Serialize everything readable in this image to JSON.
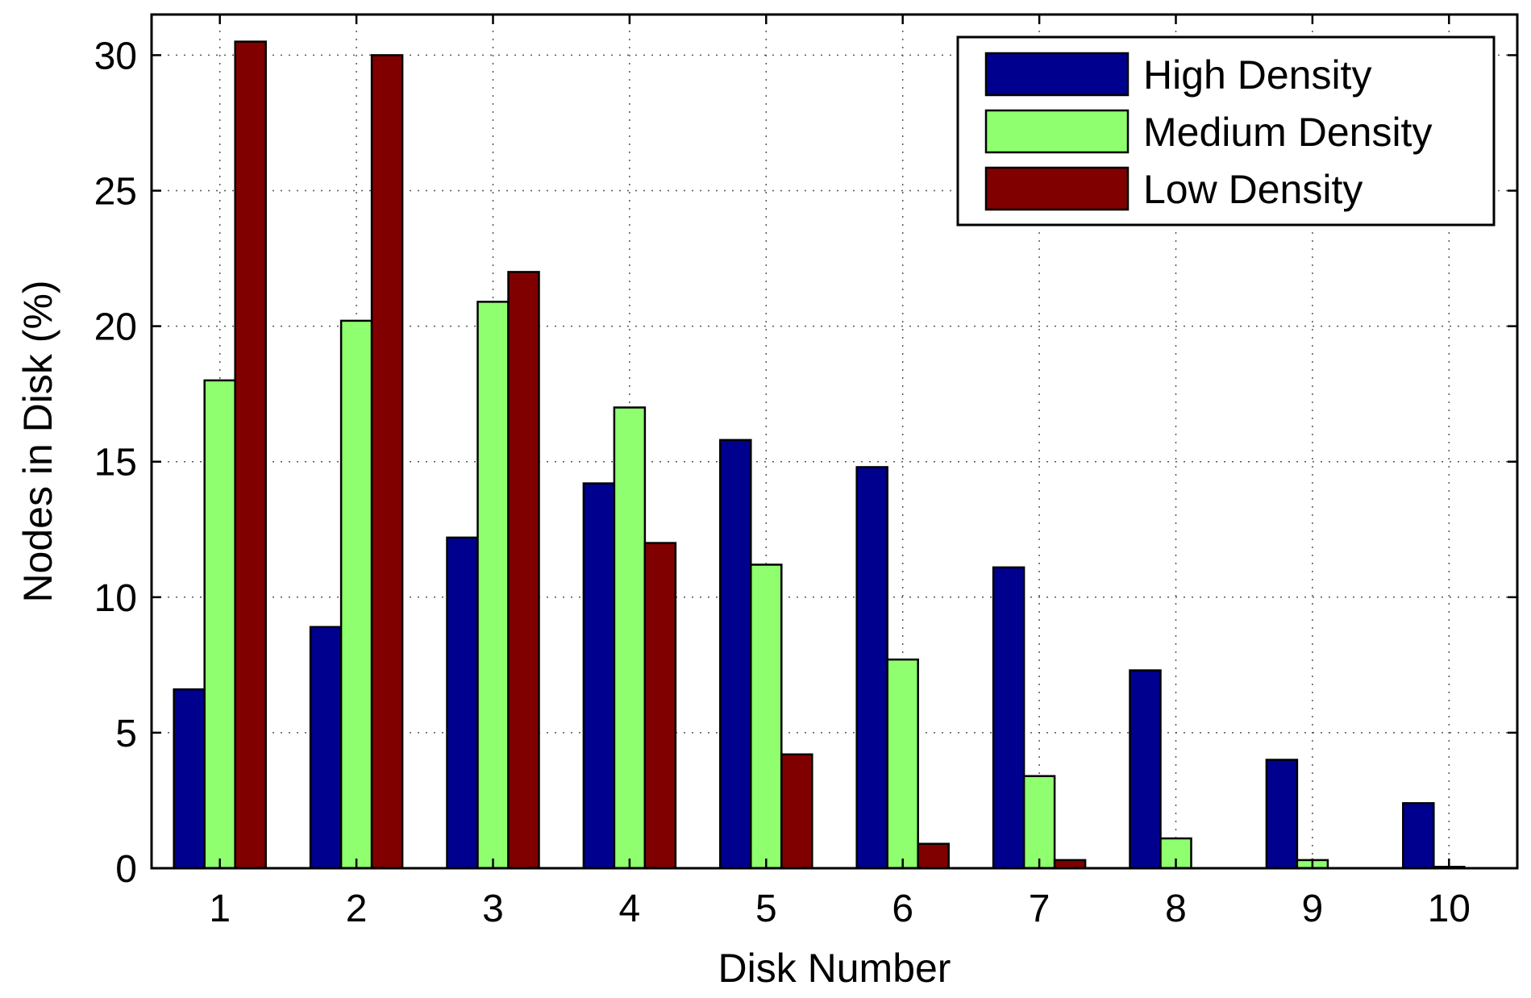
{
  "chart_data": {
    "type": "bar",
    "title": "",
    "xlabel": "Disk Number",
    "ylabel": "Nodes in Disk (%)",
    "categories": [
      "1",
      "2",
      "3",
      "4",
      "5",
      "6",
      "7",
      "8",
      "9",
      "10"
    ],
    "ylim": [
      0,
      31.5
    ],
    "yticks": [
      0,
      5,
      10,
      15,
      20,
      25,
      30
    ],
    "ytick_labels": [
      "0",
      "5",
      "10",
      "15",
      "20",
      "25",
      "30"
    ],
    "grid": true,
    "legend_position": "top-right",
    "series": [
      {
        "name": "High Density",
        "color": "#00008F",
        "values": [
          6.6,
          8.9,
          12.2,
          14.2,
          15.8,
          14.8,
          11.1,
          7.3,
          4.0,
          2.4
        ]
      },
      {
        "name": "Medium Density",
        "color": "#8FFF70",
        "values": [
          18.0,
          20.2,
          20.9,
          17.0,
          11.2,
          7.7,
          3.4,
          1.1,
          0.3,
          0.05
        ]
      },
      {
        "name": "Low Density",
        "color": "#800000",
        "values": [
          30.5,
          30.0,
          22.0,
          12.0,
          4.2,
          0.9,
          0.3,
          0.0,
          0.0,
          0.0
        ]
      }
    ]
  }
}
